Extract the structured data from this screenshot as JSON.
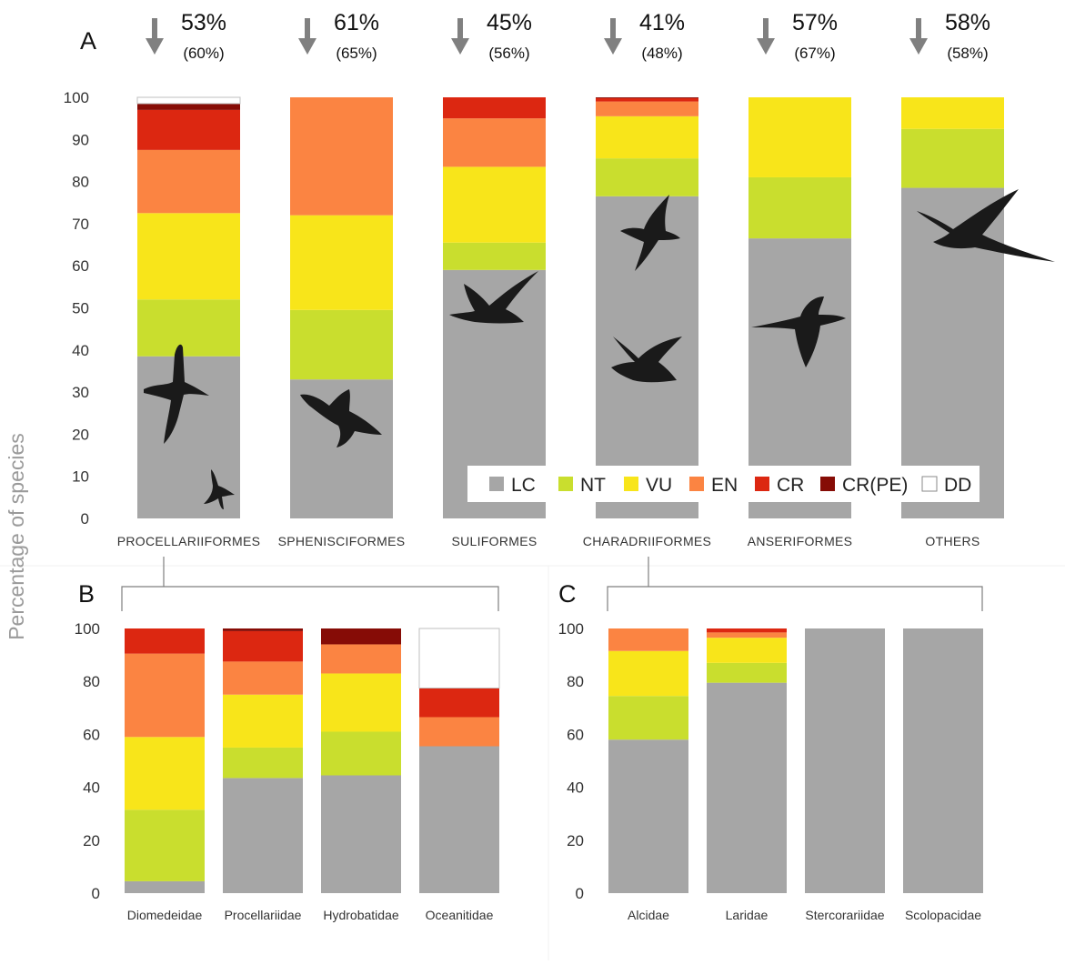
{
  "figure": {
    "y_axis_title": "Percentage of species"
  },
  "legend": {
    "entries": [
      {
        "label": "LC",
        "color": "#a6a6a6"
      },
      {
        "label": "NT",
        "color": "#c9de2e"
      },
      {
        "label": "VU",
        "color": "#f8e51a"
      },
      {
        "label": "EN",
        "color": "#fb8442"
      },
      {
        "label": "CR",
        "color": "#dc2711"
      },
      {
        "label": "CR(PE)",
        "color": "#860c06"
      },
      {
        "label": "DD",
        "color": "#ffffff"
      }
    ]
  },
  "colors": {
    "LC": "#a6a6a6",
    "NT": "#c9de2e",
    "VU": "#f8e51a",
    "EN": "#fb8442",
    "CR": "#dc2711",
    "CR(PE)": "#860c06",
    "DD": "#ffffff",
    "arrow": "#808080",
    "axis_text": "#555555",
    "bracket": "#7f7f7f",
    "silhouette": "#1a1a1a"
  },
  "chart_data": [
    {
      "panel": "A",
      "type": "bar",
      "stacked": true,
      "ylim": [
        0,
        100
      ],
      "yticks": [
        0,
        10,
        20,
        30,
        40,
        50,
        60,
        70,
        80,
        90,
        100
      ],
      "categories": [
        "PROCELLARIIFORMES",
        "SPHENISCIFORMES",
        "SULIFORMES",
        "CHARADRIIFORMES",
        "ANSERIFORMES",
        "OTHERS"
      ],
      "percent_labels": [
        "53%",
        "61%",
        "45%",
        "41%",
        "57%",
        "58%"
      ],
      "percent_sublabels": [
        "(60%)",
        "(65%)",
        "(56%)",
        "(48%)",
        "(67%)",
        "(58%)"
      ],
      "series": [
        {
          "name": "LC",
          "values": [
            38.5,
            33,
            59,
            76.5,
            66.5,
            78.5
          ]
        },
        {
          "name": "NT",
          "values": [
            13.5,
            16.5,
            6.5,
            9,
            14.5,
            14
          ]
        },
        {
          "name": "VU",
          "values": [
            20.5,
            22.5,
            18,
            10,
            19,
            7.5
          ]
        },
        {
          "name": "EN",
          "values": [
            15,
            28,
            11.5,
            3.5,
            0,
            0
          ]
        },
        {
          "name": "CR",
          "values": [
            9.5,
            0,
            5,
            0.8,
            0,
            0
          ]
        },
        {
          "name": "CR(PE)",
          "values": [
            1.5,
            0,
            0,
            0.2,
            0,
            0
          ]
        },
        {
          "name": "DD",
          "values": [
            1.5,
            0,
            0,
            0,
            0,
            0
          ]
        }
      ]
    },
    {
      "panel": "B",
      "type": "bar",
      "stacked": true,
      "ylim": [
        0,
        100
      ],
      "yticks": [
        0,
        20,
        40,
        60,
        80,
        100
      ],
      "categories": [
        "Diomedeidae",
        "Procellariidae",
        "Hydrobatidae",
        "Oceanitidae"
      ],
      "series": [
        {
          "name": "LC",
          "values": [
            4.5,
            43.5,
            44.5,
            55.5
          ]
        },
        {
          "name": "NT",
          "values": [
            27,
            11.5,
            16.5,
            0
          ]
        },
        {
          "name": "VU",
          "values": [
            27.5,
            20,
            22,
            0
          ]
        },
        {
          "name": "EN",
          "values": [
            31.5,
            12.5,
            11,
            11
          ]
        },
        {
          "name": "CR",
          "values": [
            9.5,
            11.5,
            0,
            11
          ]
        },
        {
          "name": "CR(PE)",
          "values": [
            0,
            1,
            6,
            0
          ]
        },
        {
          "name": "DD",
          "values": [
            0,
            0,
            0,
            22.5
          ]
        }
      ]
    },
    {
      "panel": "C",
      "type": "bar",
      "stacked": true,
      "ylim": [
        0,
        100
      ],
      "yticks": [
        0,
        20,
        40,
        60,
        80,
        100
      ],
      "categories": [
        "Alcidae",
        "Laridae",
        "Stercorariidae",
        "Scolopacidae"
      ],
      "series": [
        {
          "name": "LC",
          "values": [
            58,
            79.5,
            100,
            100
          ]
        },
        {
          "name": "NT",
          "values": [
            16.5,
            7.5,
            0,
            0
          ]
        },
        {
          "name": "VU",
          "values": [
            17,
            9.5,
            0,
            0
          ]
        },
        {
          "name": "EN",
          "values": [
            8.5,
            2,
            0,
            0
          ]
        },
        {
          "name": "CR",
          "values": [
            0,
            1.5,
            0,
            0
          ]
        },
        {
          "name": "CR(PE)",
          "values": [
            0,
            0,
            0,
            0
          ]
        },
        {
          "name": "DD",
          "values": [
            0,
            0,
            0,
            0
          ]
        }
      ]
    }
  ]
}
